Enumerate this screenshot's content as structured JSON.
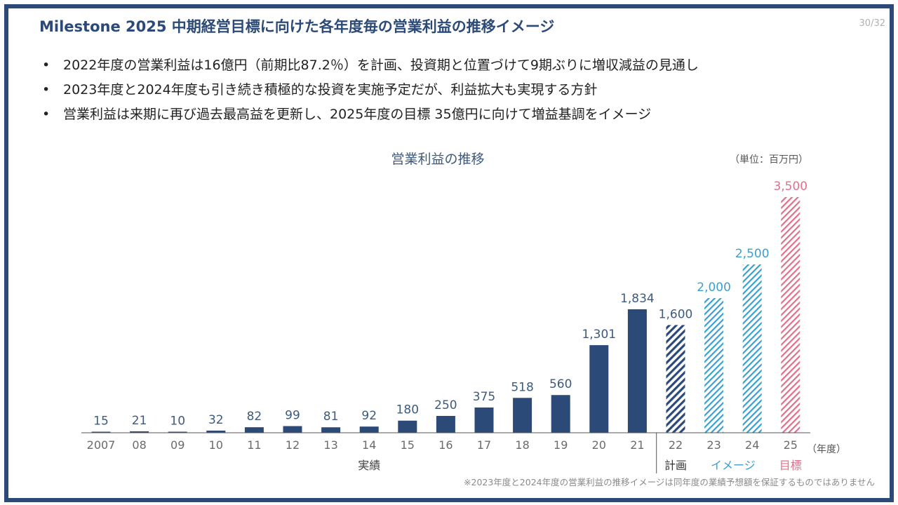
{
  "slide": {
    "title": "Milestone 2025 中期経営目標に向けた各年度毎の営業利益の推移イメージ",
    "page": "30/32",
    "bullets": [
      "2022年度の営業利益は16億円（前期比87.2％）を計画、投資期と位置づけて9期ぶりに増収減益の見通し",
      "2023年度と2024年度も引き続き積極的な投資を実施予定だが、利益拡大も実現する方針",
      "営業利益は来期に再び過去最高益を更新し、2025年度の目標 35億円に向けて増益基調をイメージ"
    ],
    "bullet_marker": "•",
    "footnote": "※2023年度と2024年度の営業利益の推移イメージは同年度の業績予想額を保証するものではありません"
  },
  "chart_data": {
    "type": "bar",
    "title": "営業利益の推移",
    "unit_label": "（単位：百万円）",
    "x_unit_label": "（年度）",
    "categories": [
      "2007",
      "08",
      "09",
      "10",
      "11",
      "12",
      "13",
      "14",
      "15",
      "16",
      "17",
      "18",
      "19",
      "20",
      "21",
      "22",
      "23",
      "24",
      "25"
    ],
    "values": [
      15,
      21,
      10,
      32,
      82,
      99,
      81,
      92,
      180,
      250,
      375,
      518,
      560,
      1301,
      1834,
      1600,
      2000,
      2500,
      3500
    ],
    "value_labels": [
      "15",
      "21",
      "10",
      "32",
      "82",
      "99",
      "81",
      "92",
      "180",
      "250",
      "375",
      "518",
      "560",
      "1,301",
      "1,834",
      "1,600",
      "2,000",
      "2,500",
      "3,500"
    ],
    "ylim": [
      0,
      3500
    ],
    "grid": false,
    "groups": [
      {
        "label": "実績",
        "from": 0,
        "to": 14,
        "style": "solid",
        "color": "#2c4a78",
        "label_color": "#444444"
      },
      {
        "label": "計画",
        "from": 15,
        "to": 15,
        "style": "hatched",
        "color": "#2c4a78",
        "label_color": "#333333"
      },
      {
        "label": "イメージ",
        "from": 16,
        "to": 17,
        "style": "hatched",
        "color": "#3aa0cf",
        "label_color": "#3aa0cf"
      },
      {
        "label": "目標",
        "from": 18,
        "to": 18,
        "style": "hatched",
        "color": "#e0708c",
        "label_color": "#e0708c"
      }
    ],
    "colors": {
      "solid_bar": "#2c4a78",
      "value_label": "#3d5a80",
      "tick_label": "#6b6b6b",
      "axis": "#555555"
    }
  }
}
